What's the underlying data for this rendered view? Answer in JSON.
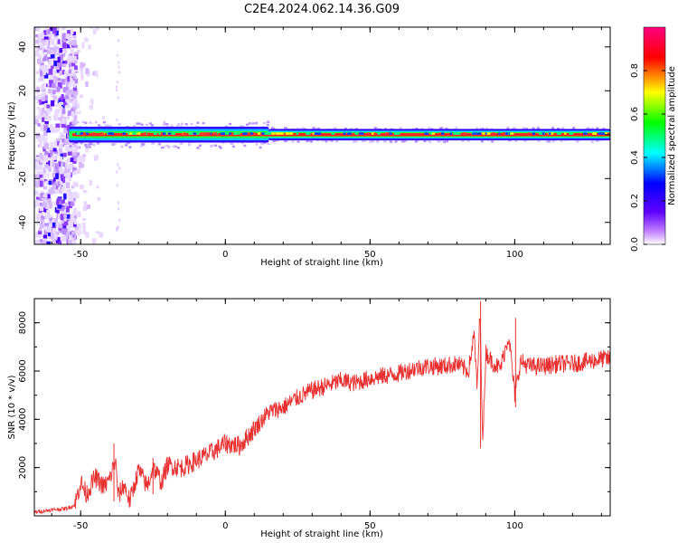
{
  "title": "C2E4.2024.062.14.36.G09",
  "chart_data": [
    {
      "type": "heatmap",
      "xlabel": "Height of straight line (km)",
      "ylabel": "Frequency (Hz)",
      "xlim": [
        -66,
        133
      ],
      "ylim": [
        -50,
        49
      ],
      "x_ticks": [
        -50,
        0,
        50,
        100
      ],
      "y_ticks": [
        -40,
        -20,
        0,
        20,
        40
      ],
      "grid": false,
      "description_of_signal": "noise band at x<-52; strong narrow carrier near 0 Hz from x=-54 to x=133",
      "colorbar": {
        "label": "Normalized spectral amplitude",
        "ticks": [
          0.0,
          0.2,
          0.4,
          0.6,
          0.8
        ],
        "range": [
          0,
          1
        ],
        "colors": [
          "#ffffff",
          "#8000ff",
          "#0000ff",
          "#00ffff",
          "#00ff00",
          "#ffff00",
          "#ff0000",
          "#ff0080"
        ]
      }
    },
    {
      "type": "line",
      "xlabel": "Height of straight line (km)",
      "ylabel": "SNR (10 * v/v)",
      "xlim": [
        -66,
        133
      ],
      "ylim": [
        0,
        9000
      ],
      "x_ticks": [
        -50,
        0,
        50,
        100
      ],
      "y_ticks": [
        2000,
        4000,
        6000,
        8000
      ],
      "grid": false,
      "color": "#e83030",
      "x": [
        -66,
        -60,
        -55,
        -52,
        -50,
        -48,
        -45,
        -42,
        -40,
        -38,
        -37,
        -35,
        -33,
        -30,
        -27,
        -25,
        -22,
        -20,
        -15,
        -10,
        -5,
        0,
        5,
        10,
        15,
        20,
        25,
        30,
        35,
        40,
        45,
        50,
        55,
        60,
        65,
        70,
        75,
        80,
        84,
        86,
        87,
        88,
        89,
        90,
        92,
        95,
        98,
        100,
        102,
        105,
        110,
        115,
        120,
        125,
        130,
        133
      ],
      "y": [
        150,
        250,
        300,
        450,
        1400,
        900,
        1600,
        1200,
        1500,
        2300,
        800,
        1300,
        600,
        1900,
        1200,
        2000,
        1400,
        2100,
        2000,
        2300,
        2600,
        3000,
        2900,
        3600,
        4300,
        4500,
        4900,
        5200,
        5400,
        5600,
        5500,
        5700,
        5800,
        5900,
        6100,
        6200,
        6200,
        6300,
        6000,
        7500,
        5200,
        8500,
        3000,
        6800,
        6400,
        6100,
        7500,
        5000,
        6400,
        6200,
        6200,
        6300,
        6300,
        6400,
        6500,
        6500
      ],
      "spikes": [
        {
          "x": 88.2,
          "y_min": 2800,
          "y_max": 8900
        },
        {
          "x": 100.3,
          "y_min": 4500,
          "y_max": 8200
        },
        {
          "x": -38.5,
          "y_min": 600,
          "y_max": 3000
        },
        {
          "x": -25,
          "y_min": 900,
          "y_max": 2400
        }
      ]
    }
  ]
}
